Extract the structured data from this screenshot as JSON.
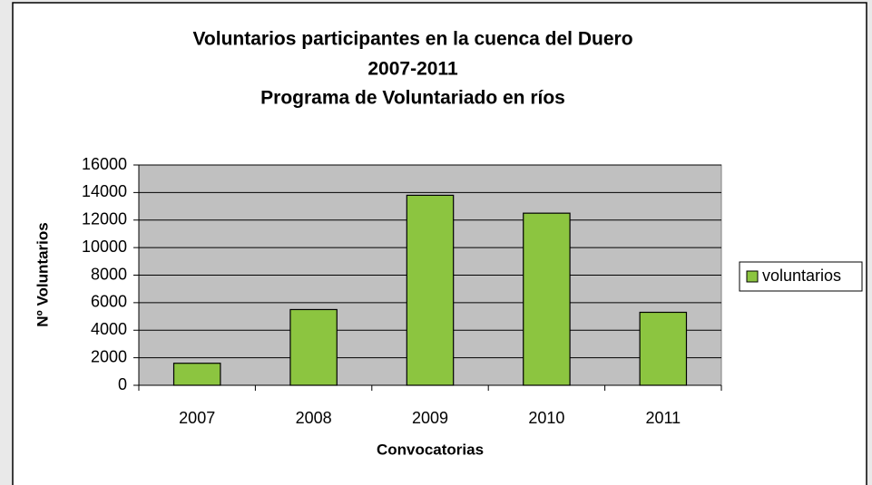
{
  "chart_data": {
    "type": "bar",
    "title": [
      "Voluntarios participantes en la cuenca del Duero",
      "2007-2011",
      "Programa de Voluntariado en ríos"
    ],
    "x_label": "Convocatorias",
    "y_label": "Nº Voluntarios",
    "categories": [
      "2007",
      "2008",
      "2009",
      "2010",
      "2011"
    ],
    "series": [
      {
        "name": "voluntarios",
        "color": "#8cc540",
        "values": [
          1600,
          5500,
          13800,
          12500,
          5300
        ]
      }
    ],
    "ylim": [
      0,
      16000
    ],
    "yticks": [
      0,
      2000,
      4000,
      6000,
      8000,
      10000,
      12000,
      14000,
      16000
    ],
    "grid": true,
    "legend": "right"
  }
}
